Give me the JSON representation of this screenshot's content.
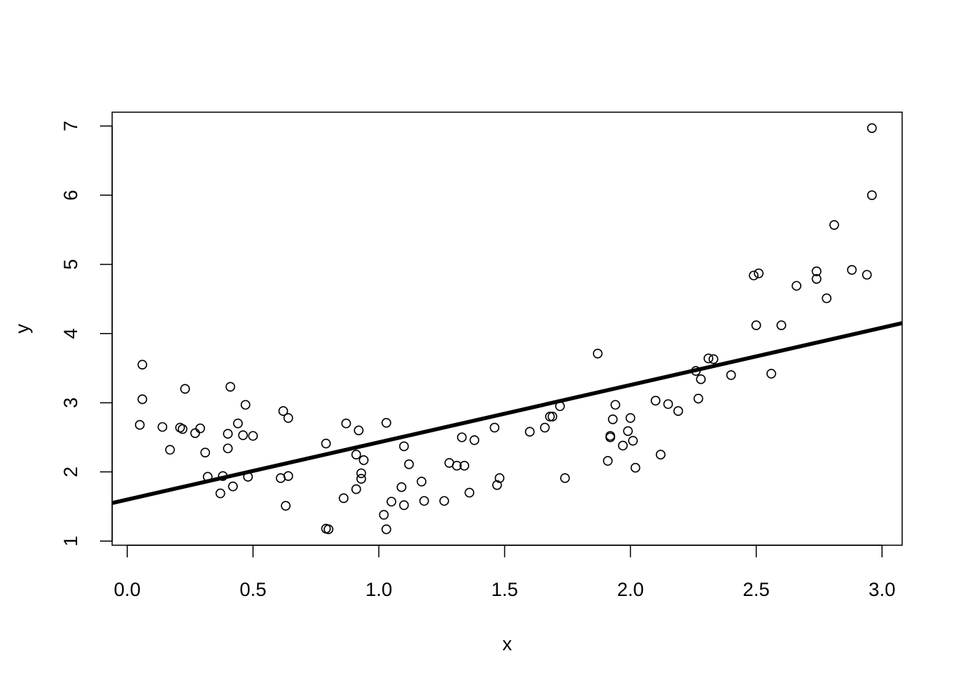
{
  "chart_data": {
    "type": "scatter",
    "title": "",
    "xlabel": "x",
    "ylabel": "y",
    "xlim": [
      -0.06,
      3.08
    ],
    "ylim": [
      0.94,
      7.2
    ],
    "xticks": [
      {
        "value": 0.0,
        "label": "0.0"
      },
      {
        "value": 0.5,
        "label": "0.5"
      },
      {
        "value": 1.0,
        "label": "1.0"
      },
      {
        "value": 1.5,
        "label": "1.5"
      },
      {
        "value": 2.0,
        "label": "2.0"
      },
      {
        "value": 2.5,
        "label": "2.5"
      },
      {
        "value": 3.0,
        "label": "3.0"
      }
    ],
    "yticks": [
      {
        "value": 1,
        "label": "1"
      },
      {
        "value": 2,
        "label": "2"
      },
      {
        "value": 3,
        "label": "3"
      },
      {
        "value": 4,
        "label": "4"
      },
      {
        "value": 5,
        "label": "5"
      },
      {
        "value": 6,
        "label": "6"
      },
      {
        "value": 7,
        "label": "7"
      }
    ],
    "grid": false,
    "point_color": "#000000",
    "line_color": "#000000",
    "regression_line": {
      "intercept": 1.6,
      "slope": 0.828
    },
    "series": [
      {
        "points": [
          [
            0.05,
            2.68
          ],
          [
            0.06,
            3.55
          ],
          [
            0.06,
            3.05
          ],
          [
            0.14,
            2.65
          ],
          [
            0.17,
            2.32
          ],
          [
            0.21,
            2.64
          ],
          [
            0.22,
            2.62
          ],
          [
            0.23,
            3.2
          ],
          [
            0.27,
            2.56
          ],
          [
            0.29,
            2.63
          ],
          [
            0.31,
            2.28
          ],
          [
            0.32,
            1.93
          ],
          [
            0.37,
            1.69
          ],
          [
            0.38,
            1.94
          ],
          [
            0.4,
            2.55
          ],
          [
            0.4,
            2.34
          ],
          [
            0.41,
            3.23
          ],
          [
            0.42,
            1.79
          ],
          [
            0.44,
            2.7
          ],
          [
            0.46,
            2.53
          ],
          [
            0.47,
            2.97
          ],
          [
            0.48,
            1.93
          ],
          [
            0.5,
            2.52
          ],
          [
            0.61,
            1.91
          ],
          [
            0.62,
            2.88
          ],
          [
            0.63,
            1.51
          ],
          [
            0.64,
            1.94
          ],
          [
            0.64,
            2.78
          ],
          [
            0.79,
            2.41
          ],
          [
            0.79,
            1.18
          ],
          [
            0.8,
            1.17
          ],
          [
            0.86,
            1.62
          ],
          [
            0.87,
            2.7
          ],
          [
            0.91,
            2.25
          ],
          [
            0.91,
            1.75
          ],
          [
            0.92,
            2.6
          ],
          [
            0.93,
            1.98
          ],
          [
            0.93,
            1.9
          ],
          [
            0.94,
            2.17
          ],
          [
            1.02,
            1.38
          ],
          [
            1.03,
            2.71
          ],
          [
            1.03,
            1.17
          ],
          [
            1.05,
            1.57
          ],
          [
            1.09,
            1.78
          ],
          [
            1.1,
            1.52
          ],
          [
            1.1,
            2.37
          ],
          [
            1.12,
            2.11
          ],
          [
            1.17,
            1.86
          ],
          [
            1.18,
            1.58
          ],
          [
            1.26,
            1.58
          ],
          [
            1.28,
            2.13
          ],
          [
            1.31,
            2.09
          ],
          [
            1.33,
            2.5
          ],
          [
            1.34,
            2.09
          ],
          [
            1.36,
            1.7
          ],
          [
            1.38,
            2.46
          ],
          [
            1.46,
            2.64
          ],
          [
            1.47,
            1.81
          ],
          [
            1.48,
            1.91
          ],
          [
            1.6,
            2.58
          ],
          [
            1.66,
            2.64
          ],
          [
            1.68,
            2.8
          ],
          [
            1.69,
            2.8
          ],
          [
            1.72,
            2.95
          ],
          [
            1.74,
            1.91
          ],
          [
            1.87,
            3.71
          ],
          [
            1.91,
            2.16
          ],
          [
            1.92,
            2.52
          ],
          [
            1.92,
            2.5
          ],
          [
            1.93,
            2.76
          ],
          [
            1.94,
            2.97
          ],
          [
            1.97,
            2.38
          ],
          [
            1.99,
            2.59
          ],
          [
            2.0,
            2.78
          ],
          [
            2.01,
            2.45
          ],
          [
            2.02,
            2.06
          ],
          [
            2.1,
            3.03
          ],
          [
            2.12,
            2.25
          ],
          [
            2.15,
            2.98
          ],
          [
            2.19,
            2.88
          ],
          [
            2.26,
            3.46
          ],
          [
            2.27,
            3.06
          ],
          [
            2.28,
            3.34
          ],
          [
            2.31,
            3.64
          ],
          [
            2.33,
            3.63
          ],
          [
            2.4,
            3.4
          ],
          [
            2.49,
            4.84
          ],
          [
            2.5,
            4.12
          ],
          [
            2.51,
            4.87
          ],
          [
            2.56,
            3.42
          ],
          [
            2.6,
            4.12
          ],
          [
            2.66,
            4.69
          ],
          [
            2.74,
            4.9
          ],
          [
            2.74,
            4.79
          ],
          [
            2.78,
            4.51
          ],
          [
            2.81,
            5.57
          ],
          [
            2.88,
            4.92
          ],
          [
            2.94,
            4.85
          ],
          [
            2.96,
            6.97
          ],
          [
            2.96,
            6.0
          ]
        ]
      }
    ]
  }
}
